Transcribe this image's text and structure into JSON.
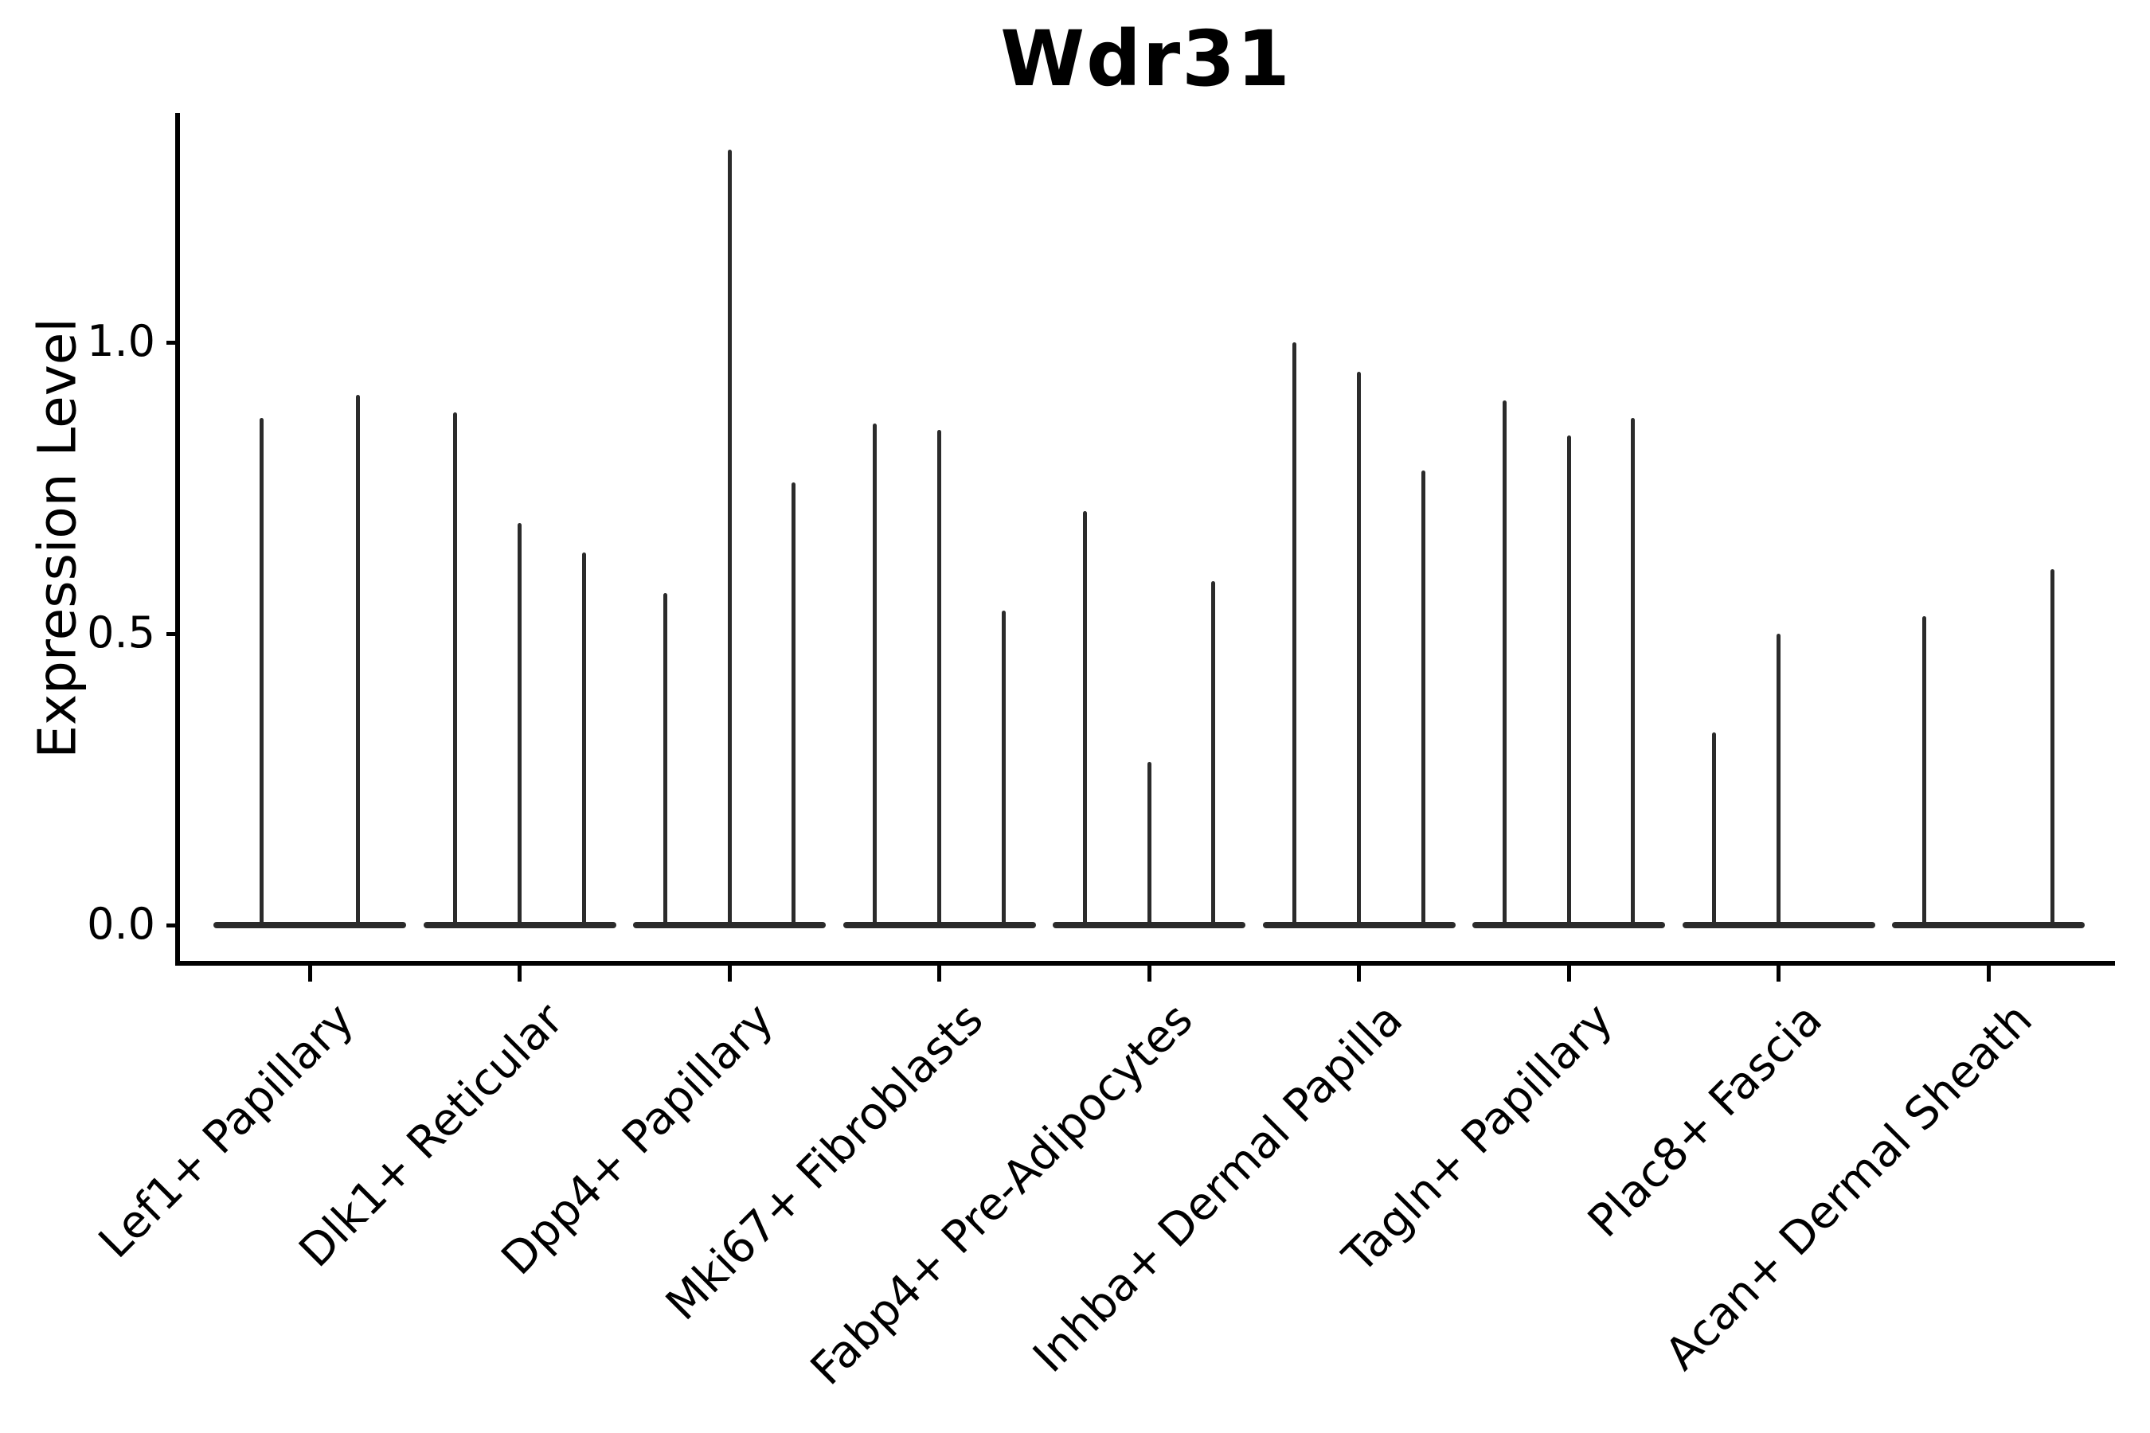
{
  "title": "Wdr31",
  "axes": {
    "y_label": "Expression Level",
    "y_ticks": [
      {
        "value": 0.0,
        "label": "0.0"
      },
      {
        "value": 0.5,
        "label": "0.5"
      },
      {
        "value": 1.0,
        "label": "1.0"
      }
    ]
  },
  "chart_data": {
    "type": "violin",
    "title": "Wdr31",
    "ylabel": "Expression Level",
    "xlabel": "",
    "ylim": [
      -0.07,
      1.39
    ],
    "yticks": [
      0.0,
      0.5,
      1.0
    ],
    "grid": false,
    "legend": "none",
    "style": "monochrome thin violins: bulk of density flattened at 0 with a single thin tail rising to the max expression value; 2-3 sub-violins per category",
    "categories": [
      "Lef1+ Papillary",
      "Dlk1+ Reticular",
      "Dpp4+ Papillary",
      "Mki67+ Fibroblasts",
      "Fabp4+ Pre-Adipocytes",
      "Inhba+ Dermal Papilla",
      "Tagln+ Papillary",
      "Plac8+ Fascia",
      "Acan+ Dermal Sheath"
    ],
    "groups": [
      {
        "category": "Lef1+ Papillary",
        "violin_max_values": [
          0.87,
          0.91
        ]
      },
      {
        "category": "Dlk1+ Reticular",
        "violin_max_values": [
          0.88,
          0.69,
          0.64
        ]
      },
      {
        "category": "Dpp4+ Papillary",
        "violin_max_values": [
          0.57,
          1.33,
          0.76
        ]
      },
      {
        "category": "Mki67+ Fibroblasts",
        "violin_max_values": [
          0.86,
          0.85,
          0.54
        ]
      },
      {
        "category": "Fabp4+ Pre-Adipocytes",
        "violin_max_values": [
          0.71,
          0.28,
          0.59
        ]
      },
      {
        "category": "Inhba+ Dermal Papilla",
        "violin_max_values": [
          1.0,
          0.95,
          0.78
        ]
      },
      {
        "category": "Tagln+ Papillary",
        "violin_max_values": [
          0.9,
          0.84,
          0.87
        ]
      },
      {
        "category": "Plac8+ Fascia",
        "violin_max_values": [
          0.33,
          0.5,
          0.0
        ]
      },
      {
        "category": "Acan+ Dermal Sheath",
        "violin_max_values": [
          0.53,
          0.0,
          0.61
        ]
      }
    ],
    "colors": {
      "violin": "#2b2b2b",
      "axis": "#000000",
      "text": "#000000",
      "background": "#ffffff"
    }
  }
}
